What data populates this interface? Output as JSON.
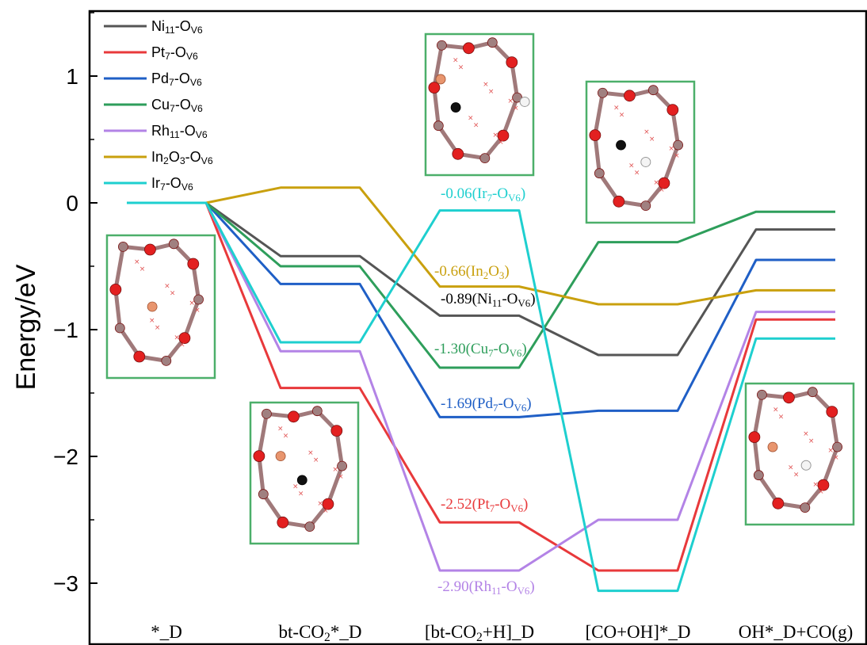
{
  "chart_data": {
    "type": "line",
    "subtype": "energy-profile",
    "ylabel": "Energy/eV",
    "ylim": [
      -3.35,
      1.5
    ],
    "yticks": [
      {
        "value": 1,
        "label": "1"
      },
      {
        "value": 0,
        "label": "0"
      },
      {
        "value": -1,
        "label": "−1"
      },
      {
        "value": -2,
        "label": "−2"
      },
      {
        "value": -3,
        "label": "−3"
      }
    ],
    "categories": [
      {
        "label_parts": [
          [
            "*_D",
            ""
          ]
        ]
      },
      {
        "label_parts": [
          [
            "bt-CO",
            ""
          ],
          [
            "2",
            "sub"
          ],
          [
            "*_D",
            ""
          ]
        ]
      },
      {
        "label_parts": [
          [
            "[bt-CO",
            ""
          ],
          [
            "2",
            "sub"
          ],
          [
            "+H]_D",
            ""
          ]
        ]
      },
      {
        "label_parts": [
          [
            "[CO+OH]*_D",
            ""
          ]
        ]
      },
      {
        "label_parts": [
          [
            "OH*_D+CO(g)",
            ""
          ]
        ]
      }
    ],
    "legend_position": "top-left",
    "series": [
      {
        "key": "ni",
        "color": "#555555",
        "values": [
          0,
          -0.42,
          -0.89,
          -1.2,
          -0.21
        ],
        "legend_parts": [
          [
            "Ni",
            ""
          ],
          [
            "11",
            "sub"
          ],
          [
            "-O",
            ""
          ],
          [
            "V6",
            "sub"
          ]
        ]
      },
      {
        "key": "pt",
        "color": "#e8393b",
        "values": [
          0,
          -1.46,
          -2.52,
          -2.9,
          -0.92
        ],
        "legend_parts": [
          [
            "Pt",
            ""
          ],
          [
            "7",
            "sub"
          ],
          [
            "-O",
            ""
          ],
          [
            "V6",
            "sub"
          ]
        ]
      },
      {
        "key": "pd",
        "color": "#1f5fc6",
        "values": [
          0,
          -0.64,
          -1.69,
          -1.64,
          -0.45
        ],
        "legend_parts": [
          [
            "Pd",
            ""
          ],
          [
            "7",
            "sub"
          ],
          [
            "-O",
            ""
          ],
          [
            "V6",
            "sub"
          ]
        ]
      },
      {
        "key": "cu",
        "color": "#2e9e5b",
        "values": [
          0,
          -0.5,
          -1.3,
          -0.31,
          -0.07
        ],
        "legend_parts": [
          [
            "Cu",
            ""
          ],
          [
            "7",
            "sub"
          ],
          [
            "-O",
            ""
          ],
          [
            "V6",
            "sub"
          ]
        ]
      },
      {
        "key": "rh",
        "color": "#b383e6",
        "values": [
          0,
          -1.17,
          -2.9,
          -2.5,
          -0.86
        ],
        "legend_parts": [
          [
            "Rh",
            ""
          ],
          [
            "11",
            "sub"
          ],
          [
            "-O",
            ""
          ],
          [
            "V6",
            "sub"
          ]
        ]
      },
      {
        "key": "in",
        "color": "#c9a00e",
        "values": [
          0,
          0.12,
          -0.66,
          -0.8,
          -0.69
        ],
        "legend_parts": [
          [
            "In",
            ""
          ],
          [
            "2",
            "sub"
          ],
          [
            "O",
            ""
          ],
          [
            "3",
            "sub"
          ],
          [
            "-O",
            ""
          ],
          [
            "V6",
            "sub"
          ]
        ]
      },
      {
        "key": "ir",
        "color": "#1ecfcf",
        "values": [
          0,
          -1.1,
          -0.06,
          -3.06,
          -1.07
        ],
        "legend_parts": [
          [
            "Ir",
            ""
          ],
          [
            "7",
            "sub"
          ],
          [
            "-O",
            ""
          ],
          [
            "V6",
            "sub"
          ]
        ]
      }
    ],
    "annotations": [
      {
        "series": "ir",
        "color": "#1ecfcf",
        "parts": [
          [
            "-0.06(Ir",
            ""
          ],
          [
            "7",
            "sub"
          ],
          [
            "-O",
            ""
          ],
          [
            "V6",
            "sub"
          ],
          [
            ")",
            ""
          ]
        ]
      },
      {
        "series": "in",
        "color": "#c9a00e",
        "parts": [
          [
            "-0.66(In",
            ""
          ],
          [
            "2",
            "sub"
          ],
          [
            "O",
            ""
          ],
          [
            "3",
            "sub"
          ],
          [
            ")",
            ""
          ]
        ]
      },
      {
        "series": "ni",
        "color": "#000000",
        "parts": [
          [
            "-0.89(Ni",
            ""
          ],
          [
            "11",
            "sub"
          ],
          [
            "-O",
            ""
          ],
          [
            "V6",
            "sub"
          ],
          [
            ")",
            ""
          ]
        ]
      },
      {
        "series": "cu",
        "color": "#2e9e5b",
        "parts": [
          [
            "-1.30(Cu",
            ""
          ],
          [
            "7",
            "sub"
          ],
          [
            "-O",
            ""
          ],
          [
            "V6",
            "sub"
          ],
          [
            ")",
            ""
          ]
        ]
      },
      {
        "series": "pd",
        "color": "#1f5fc6",
        "parts": [
          [
            "-1.69(Pd",
            ""
          ],
          [
            "7",
            "sub"
          ],
          [
            "-O",
            ""
          ],
          [
            "V6",
            "sub"
          ],
          [
            ")",
            ""
          ]
        ]
      },
      {
        "series": "pt",
        "color": "#e8393b",
        "parts": [
          [
            "-2.52(Pt",
            ""
          ],
          [
            "7",
            "sub"
          ],
          [
            "-O",
            ""
          ],
          [
            "V6",
            "sub"
          ],
          [
            ")",
            ""
          ]
        ]
      },
      {
        "series": "rh",
        "color": "#b383e6",
        "parts": [
          [
            "-2.90(Rh",
            ""
          ],
          [
            "11",
            "sub"
          ],
          [
            "-O",
            ""
          ],
          [
            "V6",
            "sub"
          ],
          [
            ")",
            ""
          ]
        ]
      }
    ],
    "structure_insets": [
      {
        "name": "structure-inset-state-1",
        "description": "catalyst cluster on oxide support"
      },
      {
        "name": "structure-inset-state-2",
        "description": "bent CO2 adsorbed"
      },
      {
        "name": "structure-inset-state-3",
        "description": "bent CO2 with H"
      },
      {
        "name": "structure-inset-state-4",
        "description": "CO and OH co-adsorbed"
      },
      {
        "name": "structure-inset-state-5",
        "description": "OH adsorbed after CO release"
      }
    ],
    "inset_border_color": "#4caf6a"
  }
}
